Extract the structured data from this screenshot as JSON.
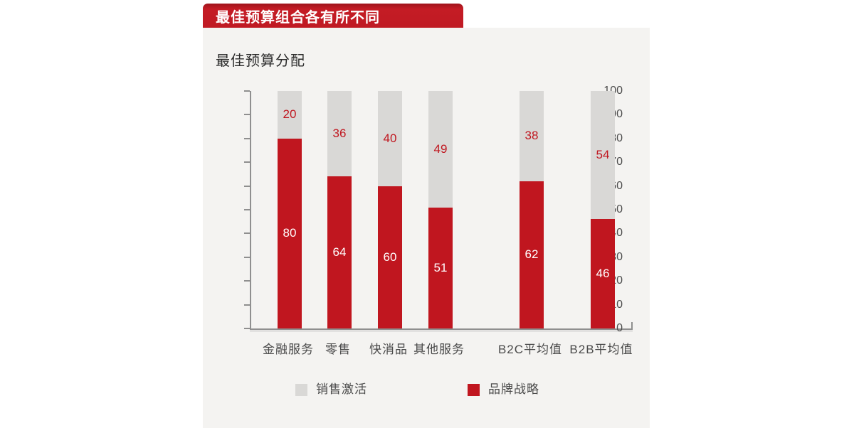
{
  "banner": {
    "title": "最佳预算组合各有所不同"
  },
  "panel": {
    "subtitle": "最佳预算分配"
  },
  "colors": {
    "banner_red": "#c01a23",
    "brand_red": "#c0161f",
    "activation_gray": "#d9d8d6",
    "panel_bg": "#f4f3f1",
    "axis_gray": "#8f8f8f",
    "label_dark": "#4a4a4a",
    "white": "#ffffff"
  },
  "chart_data": {
    "type": "bar",
    "stacked": true,
    "title": "最佳预算分配",
    "categories": [
      "金融服务",
      "零售",
      "快消品",
      "其他服务",
      "B2C平均值",
      "B2B平均值"
    ],
    "series": [
      {
        "name": "品牌战略",
        "values": [
          80,
          64,
          60,
          51,
          62,
          46
        ],
        "color": "#c0161f",
        "label_color": "#ffffff"
      },
      {
        "name": "销售激活",
        "values": [
          20,
          36,
          40,
          49,
          38,
          54
        ],
        "color": "#d9d8d6",
        "label_color": "#c0161f"
      }
    ],
    "ylim": [
      0,
      100
    ],
    "yticks": [
      0,
      10,
      20,
      30,
      40,
      50,
      60,
      70,
      80,
      90,
      100
    ],
    "xlabel": "",
    "ylabel": "",
    "grid": false,
    "legend_position": "bottom",
    "legend": [
      {
        "label": "销售激活",
        "color": "#d9d8d6"
      },
      {
        "label": "品牌战略",
        "color": "#c0161f"
      }
    ]
  }
}
